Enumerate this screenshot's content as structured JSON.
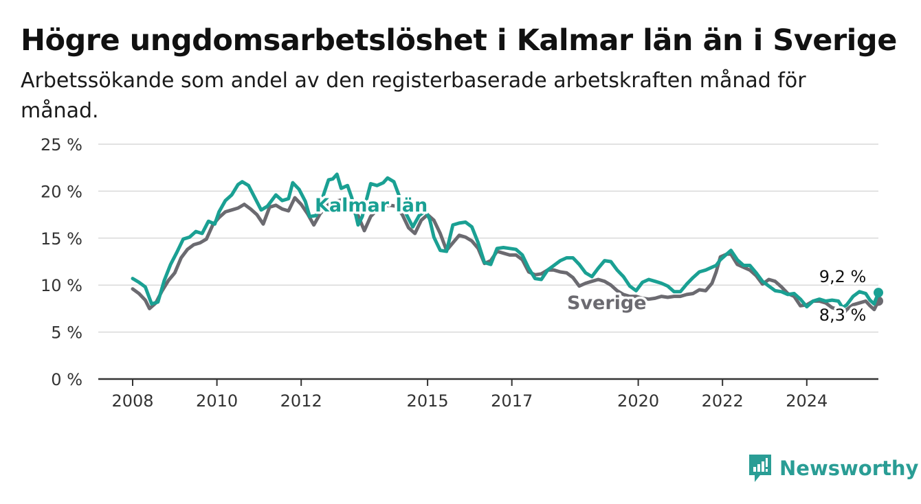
{
  "title": "Högre ungdomsarbetslöshet i Kalmar län än i Sverige",
  "subtitle": "Arbetssökande som andel av den registerbaserade arbetskraften månad för månad.",
  "brand": {
    "name": "Newsworthy",
    "icon": "newsworthy-logo-icon",
    "color": "#2a9d95"
  },
  "colors": {
    "kalmar": "#1aa093",
    "sverige": "#6b6a70",
    "grid": "#d9d9d9",
    "axis": "#333333"
  },
  "chart_data": {
    "type": "line",
    "title": "Högre ungdomsarbetslöshet i Kalmar län än i Sverige",
    "subtitle": "Arbetssökande som andel av den registerbaserade arbetskraften månad för månad.",
    "ylim": [
      0,
      25
    ],
    "y_ticks": [
      0,
      5,
      10,
      15,
      20,
      25
    ],
    "y_tick_labels": [
      "0 %",
      "5 %",
      "10 %",
      "15 %",
      "20 %",
      "25 %"
    ],
    "xlim": [
      2007.9,
      2025.75
    ],
    "x_ticks": [
      2008,
      2010,
      2012,
      2015,
      2017,
      2020,
      2022,
      2024
    ],
    "x_tick_labels": [
      "2008",
      "2010",
      "2012",
      "2015",
      "2017",
      "2020",
      "2022",
      "2024"
    ],
    "grid": true,
    "legend": "inline labels",
    "series": [
      {
        "name": "Kalmar län",
        "color": "#1aa093",
        "end_label": "9,2 %",
        "points": [
          [
            2008.0,
            10.7
          ],
          [
            2008.15,
            10.3
          ],
          [
            2008.3,
            9.8
          ],
          [
            2008.45,
            8.0
          ],
          [
            2008.6,
            8.2
          ],
          [
            2008.75,
            10.5
          ],
          [
            2008.9,
            12.2
          ],
          [
            2009.05,
            13.5
          ],
          [
            2009.2,
            14.9
          ],
          [
            2009.35,
            15.1
          ],
          [
            2009.5,
            15.7
          ],
          [
            2009.65,
            15.5
          ],
          [
            2009.8,
            16.8
          ],
          [
            2009.95,
            16.5
          ],
          [
            2010.05,
            17.8
          ],
          [
            2010.2,
            19.0
          ],
          [
            2010.35,
            19.6
          ],
          [
            2010.5,
            20.7
          ],
          [
            2010.6,
            21.0
          ],
          [
            2010.75,
            20.6
          ],
          [
            2010.9,
            19.3
          ],
          [
            2011.05,
            18.0
          ],
          [
            2011.2,
            18.4
          ],
          [
            2011.4,
            19.6
          ],
          [
            2011.55,
            19.0
          ],
          [
            2011.7,
            19.2
          ],
          [
            2011.8,
            20.9
          ],
          [
            2011.95,
            20.2
          ],
          [
            2012.1,
            18.9
          ],
          [
            2012.2,
            17.3
          ],
          [
            2012.35,
            17.4
          ],
          [
            2012.5,
            19.2
          ],
          [
            2012.65,
            21.2
          ],
          [
            2012.75,
            21.3
          ],
          [
            2012.85,
            21.8
          ],
          [
            2012.95,
            20.3
          ],
          [
            2013.1,
            20.6
          ],
          [
            2013.2,
            19.3
          ],
          [
            2013.35,
            16.4
          ],
          [
            2013.45,
            17.3
          ],
          [
            2013.55,
            19.1
          ],
          [
            2013.65,
            20.8
          ],
          [
            2013.8,
            20.6
          ],
          [
            2013.95,
            20.9
          ],
          [
            2014.05,
            21.4
          ],
          [
            2014.2,
            21.0
          ],
          [
            2014.35,
            19.2
          ],
          [
            2014.5,
            17.5
          ],
          [
            2014.65,
            16.2
          ],
          [
            2014.8,
            17.4
          ],
          [
            2014.95,
            17.9
          ],
          [
            2015.05,
            17.0
          ],
          [
            2015.15,
            15.1
          ],
          [
            2015.3,
            13.7
          ],
          [
            2015.45,
            13.6
          ],
          [
            2015.6,
            16.4
          ],
          [
            2015.75,
            16.6
          ],
          [
            2015.9,
            16.7
          ],
          [
            2016.05,
            16.2
          ],
          [
            2016.2,
            14.5
          ],
          [
            2016.35,
            12.4
          ],
          [
            2016.5,
            12.2
          ],
          [
            2016.65,
            13.9
          ],
          [
            2016.8,
            14.0
          ],
          [
            2016.95,
            13.9
          ],
          [
            2017.1,
            13.8
          ],
          [
            2017.25,
            13.2
          ],
          [
            2017.4,
            11.8
          ],
          [
            2017.55,
            10.7
          ],
          [
            2017.7,
            10.6
          ],
          [
            2017.85,
            11.6
          ],
          [
            2018.0,
            12.1
          ],
          [
            2018.15,
            12.6
          ],
          [
            2018.3,
            12.9
          ],
          [
            2018.45,
            12.9
          ],
          [
            2018.6,
            12.2
          ],
          [
            2018.75,
            11.3
          ],
          [
            2018.9,
            10.9
          ],
          [
            2019.05,
            11.8
          ],
          [
            2019.2,
            12.6
          ],
          [
            2019.35,
            12.5
          ],
          [
            2019.5,
            11.6
          ],
          [
            2019.65,
            10.9
          ],
          [
            2019.8,
            9.9
          ],
          [
            2019.95,
            9.4
          ],
          [
            2020.1,
            10.3
          ],
          [
            2020.25,
            10.6
          ],
          [
            2020.4,
            10.4
          ],
          [
            2020.55,
            10.2
          ],
          [
            2020.7,
            9.9
          ],
          [
            2020.85,
            9.3
          ],
          [
            2021.0,
            9.3
          ],
          [
            2021.15,
            10.1
          ],
          [
            2021.3,
            10.8
          ],
          [
            2021.45,
            11.4
          ],
          [
            2021.6,
            11.6
          ],
          [
            2021.75,
            11.9
          ],
          [
            2021.85,
            12.1
          ],
          [
            2021.95,
            12.7
          ],
          [
            2022.1,
            13.3
          ],
          [
            2022.2,
            13.7
          ],
          [
            2022.35,
            12.7
          ],
          [
            2022.5,
            12.1
          ],
          [
            2022.65,
            12.1
          ],
          [
            2022.8,
            11.3
          ],
          [
            2022.95,
            10.4
          ],
          [
            2023.1,
            9.9
          ],
          [
            2023.25,
            9.4
          ],
          [
            2023.4,
            9.3
          ],
          [
            2023.55,
            9.0
          ],
          [
            2023.7,
            9.1
          ],
          [
            2023.85,
            8.5
          ],
          [
            2024.0,
            7.7
          ],
          [
            2024.15,
            8.3
          ],
          [
            2024.3,
            8.5
          ],
          [
            2024.45,
            8.3
          ],
          [
            2024.6,
            8.4
          ],
          [
            2024.75,
            8.3
          ],
          [
            2024.85,
            7.6
          ],
          [
            2024.95,
            7.9
          ],
          [
            2025.1,
            8.8
          ],
          [
            2025.25,
            9.3
          ],
          [
            2025.4,
            9.1
          ],
          [
            2025.5,
            8.4
          ],
          [
            2025.6,
            8.0
          ],
          [
            2025.7,
            9.2
          ]
        ]
      },
      {
        "name": "Sverige",
        "color": "#6b6a70",
        "end_label": "8,3 %",
        "points": [
          [
            2008.0,
            9.6
          ],
          [
            2008.15,
            9.1
          ],
          [
            2008.3,
            8.4
          ],
          [
            2008.4,
            7.5
          ],
          [
            2008.55,
            8.1
          ],
          [
            2008.7,
            9.4
          ],
          [
            2008.85,
            10.5
          ],
          [
            2009.0,
            11.3
          ],
          [
            2009.15,
            12.9
          ],
          [
            2009.3,
            13.8
          ],
          [
            2009.45,
            14.3
          ],
          [
            2009.6,
            14.5
          ],
          [
            2009.75,
            14.9
          ],
          [
            2009.9,
            16.4
          ],
          [
            2010.05,
            17.2
          ],
          [
            2010.2,
            17.8
          ],
          [
            2010.35,
            18.0
          ],
          [
            2010.5,
            18.2
          ],
          [
            2010.65,
            18.6
          ],
          [
            2010.8,
            18.1
          ],
          [
            2010.95,
            17.5
          ],
          [
            2011.1,
            16.5
          ],
          [
            2011.25,
            18.3
          ],
          [
            2011.4,
            18.5
          ],
          [
            2011.55,
            18.1
          ],
          [
            2011.7,
            17.9
          ],
          [
            2011.85,
            19.3
          ],
          [
            2012.0,
            18.6
          ],
          [
            2012.15,
            17.6
          ],
          [
            2012.3,
            16.4
          ],
          [
            2012.45,
            17.6
          ],
          [
            2012.6,
            18.4
          ],
          [
            2012.75,
            18.9
          ],
          [
            2012.9,
            19.0
          ],
          [
            2013.05,
            19.2
          ],
          [
            2013.2,
            17.9
          ],
          [
            2013.35,
            17.4
          ],
          [
            2013.5,
            15.8
          ],
          [
            2013.65,
            17.3
          ],
          [
            2013.8,
            18.0
          ],
          [
            2013.95,
            18.4
          ],
          [
            2014.1,
            18.5
          ],
          [
            2014.25,
            18.4
          ],
          [
            2014.4,
            17.5
          ],
          [
            2014.55,
            16.1
          ],
          [
            2014.7,
            15.5
          ],
          [
            2014.85,
            16.9
          ],
          [
            2015.0,
            17.5
          ],
          [
            2015.15,
            16.9
          ],
          [
            2015.3,
            15.5
          ],
          [
            2015.45,
            13.7
          ],
          [
            2015.6,
            14.5
          ],
          [
            2015.75,
            15.3
          ],
          [
            2015.9,
            15.1
          ],
          [
            2016.05,
            14.7
          ],
          [
            2016.2,
            13.9
          ],
          [
            2016.35,
            12.3
          ],
          [
            2016.5,
            12.6
          ],
          [
            2016.65,
            13.6
          ],
          [
            2016.8,
            13.4
          ],
          [
            2016.95,
            13.2
          ],
          [
            2017.1,
            13.2
          ],
          [
            2017.25,
            12.7
          ],
          [
            2017.4,
            11.4
          ],
          [
            2017.55,
            11.1
          ],
          [
            2017.7,
            11.2
          ],
          [
            2017.85,
            11.6
          ],
          [
            2018.0,
            11.6
          ],
          [
            2018.15,
            11.4
          ],
          [
            2018.3,
            11.3
          ],
          [
            2018.45,
            10.8
          ],
          [
            2018.6,
            9.9
          ],
          [
            2018.75,
            10.2
          ],
          [
            2018.9,
            10.4
          ],
          [
            2019.05,
            10.6
          ],
          [
            2019.2,
            10.4
          ],
          [
            2019.35,
            10.0
          ],
          [
            2019.5,
            9.4
          ],
          [
            2019.65,
            9.0
          ],
          [
            2019.8,
            8.8
          ],
          [
            2019.95,
            8.8
          ],
          [
            2020.1,
            8.6
          ],
          [
            2020.25,
            8.5
          ],
          [
            2020.4,
            8.6
          ],
          [
            2020.55,
            8.8
          ],
          [
            2020.7,
            8.7
          ],
          [
            2020.85,
            8.8
          ],
          [
            2021.0,
            8.8
          ],
          [
            2021.15,
            9.0
          ],
          [
            2021.3,
            9.1
          ],
          [
            2021.45,
            9.5
          ],
          [
            2021.6,
            9.4
          ],
          [
            2021.75,
            10.2
          ],
          [
            2021.85,
            11.4
          ],
          [
            2021.95,
            13.0
          ],
          [
            2022.1,
            13.3
          ],
          [
            2022.2,
            13.3
          ],
          [
            2022.35,
            12.2
          ],
          [
            2022.5,
            11.9
          ],
          [
            2022.65,
            11.6
          ],
          [
            2022.8,
            11.0
          ],
          [
            2022.95,
            10.1
          ],
          [
            2023.1,
            10.6
          ],
          [
            2023.25,
            10.4
          ],
          [
            2023.4,
            9.8
          ],
          [
            2023.55,
            9.1
          ],
          [
            2023.7,
            8.8
          ],
          [
            2023.85,
            7.8
          ],
          [
            2024.0,
            7.9
          ],
          [
            2024.15,
            8.3
          ],
          [
            2024.3,
            8.3
          ],
          [
            2024.45,
            8.1
          ],
          [
            2024.6,
            7.6
          ],
          [
            2024.75,
            7.4
          ],
          [
            2024.85,
            6.9
          ],
          [
            2024.95,
            7.4
          ],
          [
            2025.1,
            7.9
          ],
          [
            2025.25,
            8.1
          ],
          [
            2025.4,
            8.3
          ],
          [
            2025.5,
            7.8
          ],
          [
            2025.6,
            7.4
          ],
          [
            2025.7,
            8.3
          ]
        ]
      }
    ]
  }
}
